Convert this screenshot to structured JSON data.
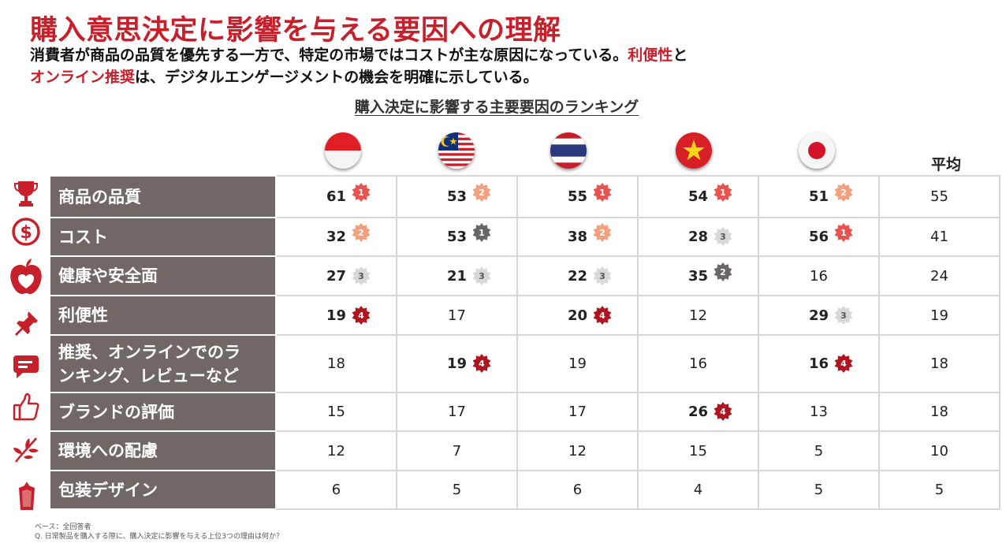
{
  "title": "購入意思決定に影響を与える要因への理解",
  "subtitle": {
    "line1_text": "消費者が商品の品質を優先する一方で、特定の市場ではコストが主な原因になっている。",
    "line1_highlight": "利便性",
    "line1_end": "と",
    "line2_highlight": "オンライン推奨",
    "line2_text": "は、デジタルエンゲージメントの機会を明確に示している。"
  },
  "colors": {
    "accent_red": "#c8202a",
    "label_gray": "#716866",
    "rank1": "#e8534f",
    "rank2": "#f2a07d",
    "rank3": "#d8d8d8",
    "rank4": "#b0141e",
    "rank_dark": "#6b6665"
  },
  "chart_data": {
    "type": "table",
    "title": "購入決定に影響する主要要因のランキング",
    "columns": [
      {
        "key": "id",
        "flag": "indonesia-flag"
      },
      {
        "key": "my",
        "flag": "malaysia-flag"
      },
      {
        "key": "th",
        "flag": "thailand-flag"
      },
      {
        "key": "vn",
        "flag": "vietnam-flag"
      },
      {
        "key": "jp",
        "flag": "japan-flag"
      },
      {
        "key": "avg",
        "label": "平均"
      }
    ],
    "rows": [
      {
        "label": "商品の品質",
        "icon": "trophy-icon",
        "cells": [
          {
            "v": "61",
            "r": "1"
          },
          {
            "v": "53",
            "r": "2"
          },
          {
            "v": "55",
            "r": "1"
          },
          {
            "v": "54",
            "r": "1"
          },
          {
            "v": "51",
            "r": "2"
          },
          {
            "v": "55"
          }
        ]
      },
      {
        "label": "コスト",
        "icon": "dollar-icon",
        "cells": [
          {
            "v": "32",
            "r": "2"
          },
          {
            "v": "53",
            "r": "1",
            "dark": true
          },
          {
            "v": "38",
            "r": "2"
          },
          {
            "v": "28",
            "r": "3"
          },
          {
            "v": "56",
            "r": "1"
          },
          {
            "v": "41"
          }
        ]
      },
      {
        "label": "健康や安全面",
        "icon": "apple-heart-icon",
        "cells": [
          {
            "v": "27",
            "r": "3"
          },
          {
            "v": "21",
            "r": "3"
          },
          {
            "v": "22",
            "r": "3"
          },
          {
            "v": "35",
            "r": "2",
            "dark": true
          },
          {
            "v": "16"
          },
          {
            "v": "24"
          }
        ]
      },
      {
        "label": "利便性",
        "icon": "pushpin-icon",
        "cells": [
          {
            "v": "19",
            "r": "4"
          },
          {
            "v": "17"
          },
          {
            "v": "20",
            "r": "4"
          },
          {
            "v": "12"
          },
          {
            "v": "29",
            "r": "3"
          },
          {
            "v": "19"
          }
        ]
      },
      {
        "label": "推奨、オンラインでのランキング、レビューなど",
        "label_line1": "推奨、オンラインでのラ",
        "label_line2": "ンキング、レビューなど",
        "icon": "chat-bubble-icon",
        "cells": [
          {
            "v": "18"
          },
          {
            "v": "19",
            "r": "4"
          },
          {
            "v": "19"
          },
          {
            "v": "16"
          },
          {
            "v": "16",
            "r": "4"
          },
          {
            "v": "18"
          }
        ]
      },
      {
        "label": "ブランドの評価",
        "icon": "thumbs-up-icon",
        "cells": [
          {
            "v": "15"
          },
          {
            "v": "17"
          },
          {
            "v": "17"
          },
          {
            "v": "26",
            "r": "4"
          },
          {
            "v": "13"
          },
          {
            "v": "18"
          }
        ]
      },
      {
        "label": "環境への配慮",
        "icon": "leaf-icon",
        "cells": [
          {
            "v": "12"
          },
          {
            "v": "7"
          },
          {
            "v": "12"
          },
          {
            "v": "15"
          },
          {
            "v": "5"
          },
          {
            "v": "10"
          }
        ]
      },
      {
        "label": "包装デザイン",
        "icon": "package-icon",
        "cells": [
          {
            "v": "6"
          },
          {
            "v": "5"
          },
          {
            "v": "6"
          },
          {
            "v": "4"
          },
          {
            "v": "5"
          },
          {
            "v": "5"
          }
        ]
      }
    ]
  },
  "footnote": {
    "base": "ベース：全回答者",
    "question": "Q. 日常製品を購入する際に、購入決定に影響を与える上位3つの理由は何か？"
  }
}
